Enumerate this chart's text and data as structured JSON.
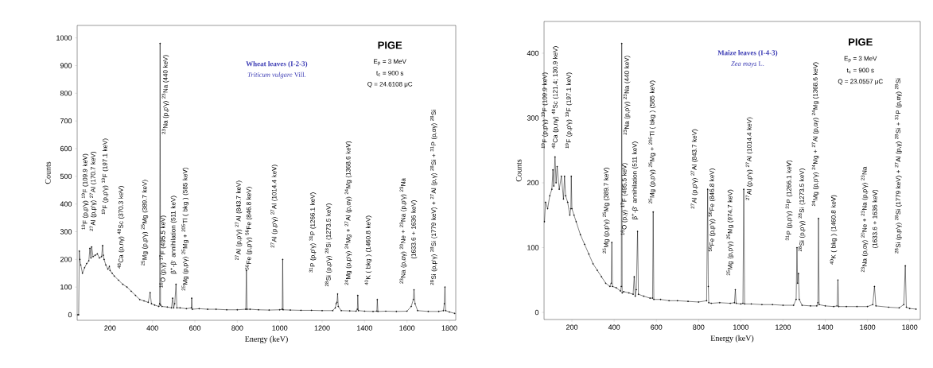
{
  "chart_data": [
    {
      "type": "line",
      "title": "PIGE",
      "subtitle": "Wheat leaves (I-2-3)",
      "xlabel": "Energy  (keV)",
      "ylabel": "Counts",
      "xlim": [
        45,
        1830
      ],
      "ylim": [
        -20,
        1045
      ],
      "xticks": [
        200,
        400,
        600,
        800,
        1000,
        1200,
        1400,
        1600,
        1800
      ],
      "yticks": [
        0,
        100,
        200,
        300,
        400,
        500,
        600,
        700,
        800,
        900,
        1000
      ],
      "marker": "circle",
      "line_style": "solid",
      "series": [
        {
          "color": "#000000",
          "x": [
            48,
            52,
            55,
            58,
            62,
            70,
            80,
            90,
            100,
            105,
            110,
            113,
            120,
            130,
            140,
            150,
            160,
            165,
            168,
            172,
            180,
            190,
            197,
            200,
            210,
            220,
            240,
            260,
            280,
            300,
            320,
            340,
            360,
            380,
            389,
            395,
            410,
            430,
            434,
            436,
            438,
            445,
            470,
            490,
            495,
            500,
            505,
            511,
            515,
            530,
            560,
            583,
            585,
            588,
            620,
            660,
            700,
            750,
            800,
            840,
            843,
            846,
            860,
            900,
            950,
            1000,
            1012,
            1014,
            1016,
            1050,
            1100,
            1150,
            1200,
            1250,
            1262,
            1266,
            1270,
            1273,
            1276,
            1290,
            1330,
            1360,
            1366,
            1368,
            1371,
            1400,
            1440,
            1458,
            1460,
            1463,
            1500,
            1550,
            1600,
            1620,
            1630,
            1633,
            1638,
            1650,
            1700,
            1750,
            1772,
            1776,
            1779,
            1782,
            1800,
            1825
          ],
          "values": [
            0,
            0,
            230,
            200,
            180,
            150,
            170,
            185,
            195,
            240,
            205,
            245,
            210,
            215,
            220,
            205,
            210,
            250,
            215,
            200,
            180,
            165,
            175,
            160,
            150,
            140,
            125,
            110,
            100,
            85,
            70,
            55,
            50,
            45,
            80,
            40,
            35,
            30,
            40,
            980,
            35,
            30,
            28,
            25,
            60,
            25,
            40,
            110,
            25,
            25,
            22,
            25,
            60,
            20,
            22,
            20,
            20,
            18,
            18,
            20,
            160,
            20,
            20,
            18,
            17,
            18,
            20,
            200,
            18,
            17,
            16,
            16,
            15,
            15,
            25,
            40,
            45,
            75,
            30,
            15,
            14,
            13,
            20,
            70,
            15,
            13,
            12,
            13,
            55,
            12,
            13,
            12,
            13,
            30,
            55,
            90,
            40,
            15,
            12,
            12,
            15,
            40,
            100,
            15,
            10,
            5
          ]
        }
      ],
      "annotations": [
        "$^{19}$F (p,p'γ) $^{19}$F  (109.9 keV)",
        "$^{27}$Al (p,p'γ) $^{27}$Al  (170.7 keV)",
        "$^{19}$F (p,p'γ) $^{19}$F  (197.1 keV)",
        "$^{48}$Ca (p,nγ) $^{48}$Sc  (370.3 keV)",
        "$^{25}$Mg (p,p'γ) $^{25}$Mg  (389.7 keV)",
        "$^{23}$Na (p,p'γ) $^{23}$Na  (440 keV)",
        "$^{16}$O (p,γ) $^{17}$F  (495.5 keV)",
        "β$^{+}$-β$^{-}$ annihilation (511 keV)",
        "$^{25}$Mg (p,p'γ) $^{25}$Mg  +  $^{205}$Tl ( bkg ) (585 keV)",
        "$^{27}$Al (p,p'γ) $^{27}$Al  (843.7 keV)",
        "$^{56}$Fe (p,p'γ) $^{56}$Fe  (846.8 keV)",
        "$^{27}$Al (p,p'γ) $^{27}$Al  (1014.4 keV)",
        "$^{31}$P (p,p'γ) $^{31}$P  (1266.1 keV)",
        "$^{28}$Si (p,p'γ) $^{28}$Si  (1273.5 keV)",
        "$^{24}$Mg (p,p'γ) $^{24}$Mg + $^{27}$Al (p,αγ) $^{24}$Mg  (1368.6 keV)",
        "$^{40}$K ( bkg ) (1460.8 keV)",
        "$^{23}$Na (p,αγ) $^{20}$Ne  +  $^{23}$Na (p,p'γ) $^{23}$Na",
        "(1633.6 + 1636 keV)",
        "$^{28}$Si (p,p'γ) $^{28}$Si  (1779 keV) + $^{27}$Al (p,γ) $^{28}$Si + $^{31}$P (p,αγ) $^{28}$Si",
        "*Triticum vulgare* Vill.",
        "E$_{p}$ = 3 MeV",
        "t$_{c}$ = 900 s",
        "Q = 24.6108 μC"
      ]
    },
    {
      "type": "line",
      "title": "PIGE",
      "subtitle": "Maize leaves (I-4-3)",
      "xlabel": "Energy  (keV)",
      "ylabel": "Counts",
      "xlim": [
        68,
        1850
      ],
      "ylim": [
        -11,
        449
      ],
      "xticks": [
        200,
        400,
        600,
        800,
        1000,
        1200,
        1400,
        1600,
        1800
      ],
      "yticks": [
        0,
        100,
        200,
        300,
        400
      ],
      "marker": "circle",
      "line_style": "solid",
      "series": [
        {
          "color": "#000000",
          "x": [
            70,
            75,
            85,
            95,
            105,
            110,
            114,
            120,
            125,
            130,
            140,
            150,
            160,
            165,
            170,
            180,
            190,
            195,
            197,
            200,
            210,
            220,
            240,
            260,
            280,
            300,
            320,
            340,
            360,
            380,
            386,
            389,
            392,
            410,
            430,
            434,
            436,
            438,
            445,
            470,
            490,
            495,
            500,
            505,
            511,
            515,
            540,
            570,
            582,
            585,
            588,
            620,
            660,
            700,
            750,
            800,
            838,
            843,
            846,
            848,
            860,
            900,
            950,
            970,
            974,
            978,
            1000,
            1010,
            1014,
            1018,
            1050,
            1100,
            1150,
            1200,
            1250,
            1262,
            1266,
            1269,
            1273,
            1277,
            1290,
            1330,
            1360,
            1365,
            1368,
            1371,
            1400,
            1440,
            1456,
            1460,
            1464,
            1500,
            1550,
            1600,
            1625,
            1633,
            1640,
            1700,
            1750,
            1772,
            1779,
            1784,
            1800,
            1830
          ],
          "values": [
            140,
            170,
            160,
            180,
            190,
            220,
            195,
            240,
            200,
            225,
            190,
            210,
            175,
            210,
            180,
            170,
            150,
            160,
            210,
            160,
            150,
            140,
            120,
            105,
            90,
            75,
            65,
            55,
            45,
            40,
            45,
            108,
            40,
            38,
            33,
            40,
            415,
            30,
            32,
            30,
            28,
            55,
            25,
            35,
            125,
            28,
            25,
            22,
            22,
            155,
            20,
            20,
            18,
            18,
            17,
            16,
            18,
            190,
            40,
            15,
            14,
            15,
            14,
            15,
            35,
            14,
            13,
            14,
            190,
            13,
            13,
            12,
            12,
            11,
            11,
            20,
            100,
            45,
            60,
            20,
            11,
            10,
            10,
            15,
            145,
            12,
            10,
            9,
            10,
            50,
            9,
            9,
            9,
            9,
            12,
            40,
            10,
            8,
            7,
            12,
            72,
            8,
            6,
            5
          ]
        }
      ],
      "annotations": [
        "$^{19}$F (p,p'γ) $^{19}$F  (109.9 keV)",
        "$^{48}$Ca (p,nγ) $^{48}$Sc (121.4; 130.9 keV)",
        "$^{19}$F (p,p'γ) $^{19}$F  (197.1 keV)",
        "$^{25}$Mg (p,p'γ) $^{25}$Mg  (389.7 keV)",
        "$^{23}$Na (p,p'γ) $^{23}$Na  (440 keV)",
        "$^{16}$O (p,γ) $^{17}$F  (495.5 keV)",
        "β$^{+}$-β$^{-}$ annihilation (511 keV)",
        "$^{25}$Mg (p,p'γ) $^{25}$Mg  +  $^{205}$Tl ( bkg ) (585 keV)",
        "$^{27}$Al (p,p'γ) $^{27}$Al  (843.7 keV)",
        "$^{56}$Fe (p,p'γ) $^{56}$Fe  (846.8 keV)",
        "$^{25}$Mg (p,p'γ) $^{25}$Mg  (974.7 keV)",
        "$^{27}$Al (p,p'γ) $^{27}$Al  (1014.4 keV)",
        "$^{31}$P (p,p'γ) $^{31}$P  (1266.1 keV)",
        "$^{28}$Si (p,p'γ) $^{28}$Si  (1273.5 keV)",
        "$^{24}$Mg (p,p'γ) $^{24}$Mg + $^{27}$Al (p,αγ) $^{24}$Mg  (1368.6 keV)",
        "$^{40}$K ( bkg ) (1460.8 keV)",
        "$^{23}$Na (p,αγ) $^{20}$Ne  +  $^{23}$Na (p,p'γ) $^{23}$Na",
        "(1633.6 + 1636 keV)",
        "$^{28}$Si (p,p'γ) $^{28}$Si  (1779 keV) + $^{27}$Al (p,γ) $^{28}$Si + $^{31}$P (p,αγ) $^{28}$Si",
        "*Zea mays* L.",
        "E$_{p}$ = 3 MeV",
        "t$_{c}$ = 900 s",
        "Q = 23.0557 μC"
      ]
    }
  ]
}
